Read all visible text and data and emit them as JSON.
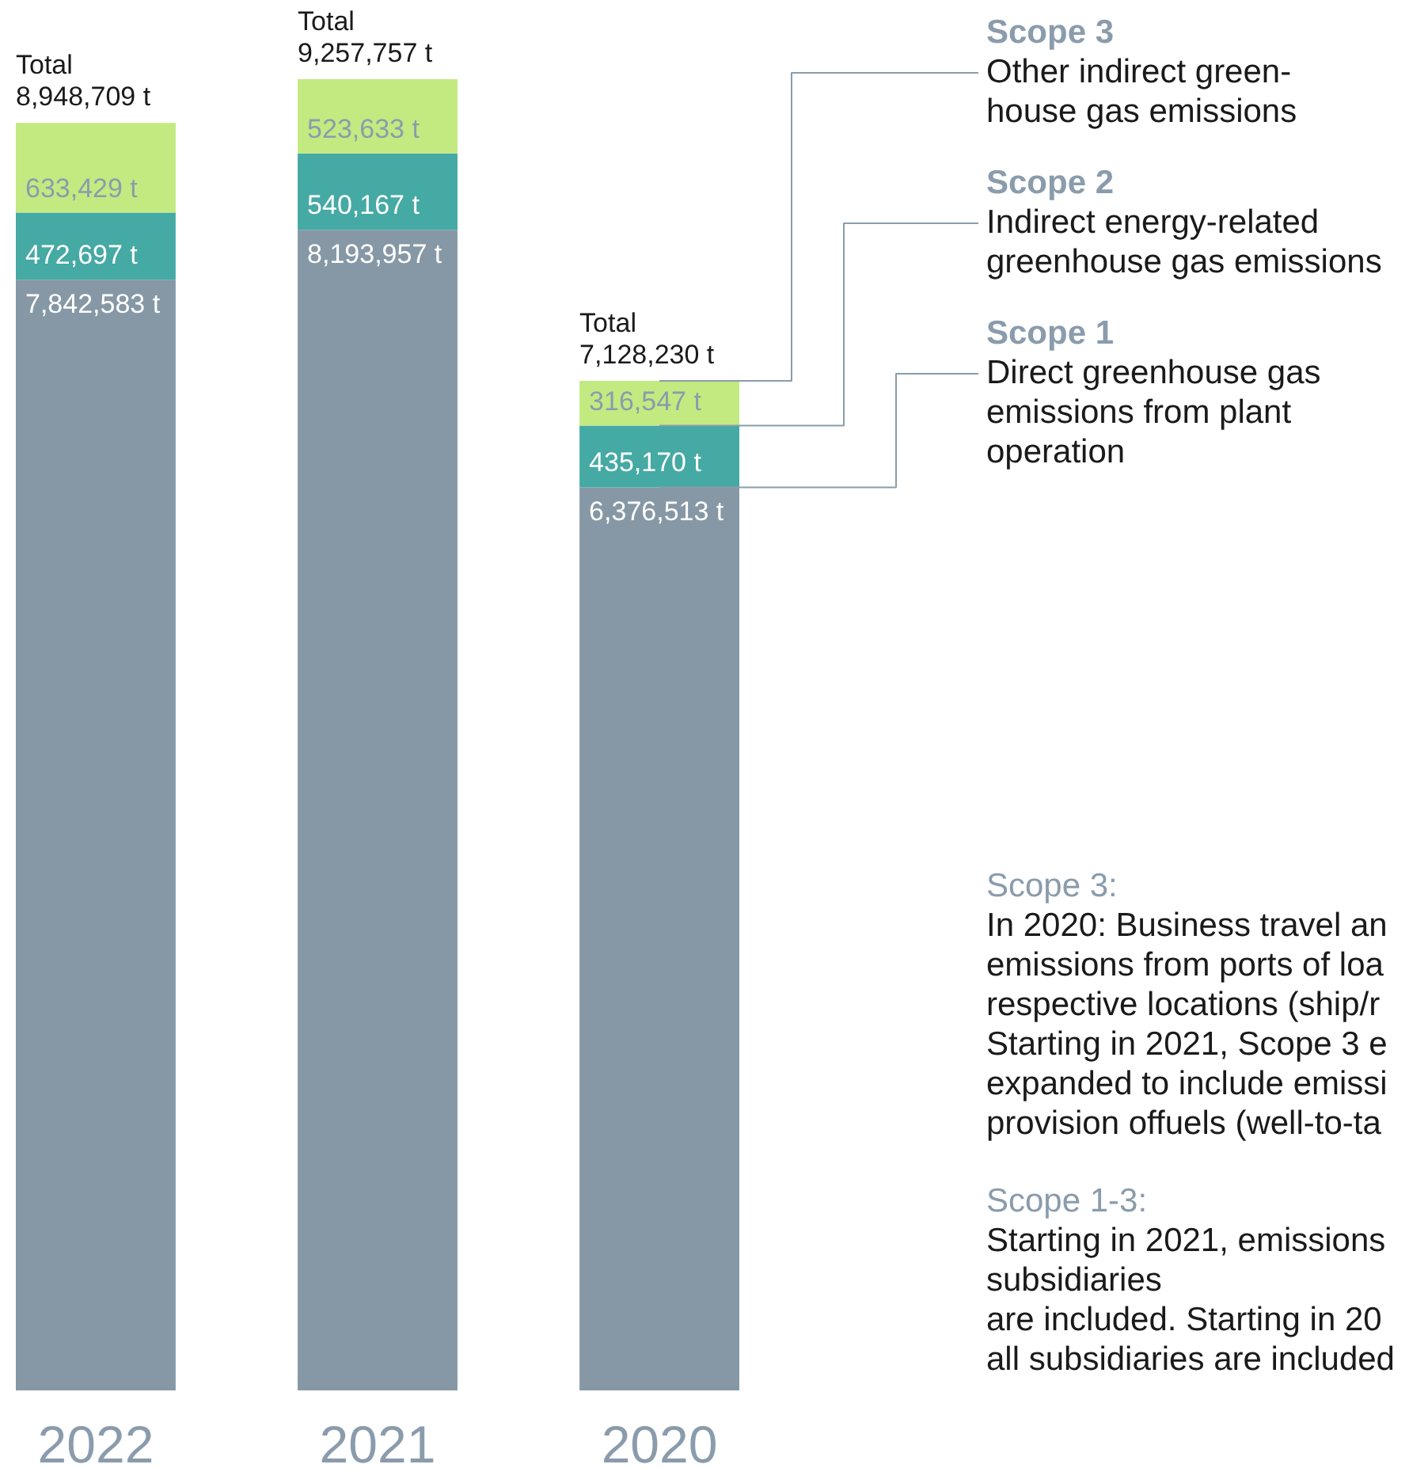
{
  "chart_data": {
    "type": "bar",
    "stacked": true,
    "legend": "top right",
    "categories": [
      "2022",
      "2021",
      "2020"
    ],
    "series": [
      {
        "name": "Scope 1",
        "color": "#8698a5",
        "values": [
          7842583,
          8193957,
          6376513
        ],
        "value_labels": [
          "7,842,583 t",
          "8,193,957 t",
          "6,376,513 t"
        ]
      },
      {
        "name": "Scope 2",
        "color": "#45a9a4",
        "values": [
          472697,
          540167,
          435170
        ],
        "value_labels": [
          "472,697 t",
          "540,167 t",
          "435,170 t"
        ]
      },
      {
        "name": "Scope 3",
        "color": "#c2ea81",
        "values": [
          633429,
          523633,
          316547
        ],
        "value_labels": [
          "633,429 t",
          "523,633 t",
          "316,547 t"
        ]
      }
    ],
    "totals": [
      "Total\n8,948,709 t",
      "Total\n9,257,757 t",
      "Total\n7,128,230 t"
    ],
    "annotations": [
      {
        "text": "Direct greenhouse gas\nemissions from plant\noperation",
        "x": "2020",
        "y": 6376513
      },
      {
        "text": "Indirect energy-related\ngreenhouse gas emissions",
        "x": "2020",
        "y": 6811683
      },
      {
        "text": "Other indirect green-\nhouse gas emissions",
        "x": "2020",
        "y": 7128230
      },
      "Scope 3:",
      "In 2020: Business travel an\nemissions from ports of loa\nrespective locations (ship/r\nStarting in 2021, Scope 3 e\nexpanded to include emissi\nprovision offuels (well-to-ta",
      "Scope 1-3:",
      "Starting in 2021, emissions\nsubsidiaries\nare included. Starting in 20\nall subsidiaries are included"
    ]
  }
}
